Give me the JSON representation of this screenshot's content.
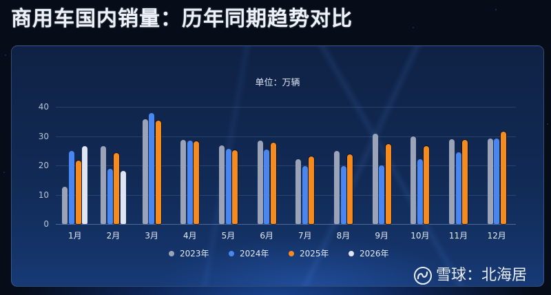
{
  "title": "商用车国内销量：历年同期趋势对比",
  "panel": {
    "unit_label": "单位：万辆"
  },
  "watermark": {
    "logo": "snowball-logo-icon",
    "text": "雪球：北海居"
  },
  "colors": {
    "2023年": "#9aa3b8",
    "2024年": "#4a86f0",
    "2025年": "#f58a1f",
    "2026年": "#dfe5f2",
    "background": "#060b14",
    "panel": "#112a55"
  },
  "chart_data": {
    "type": "bar",
    "title": "商用车国内销量：历年同期趋势对比",
    "subtitle": "单位：万辆",
    "xlabel": "",
    "ylabel": "万辆",
    "ylim": [
      0,
      40
    ],
    "yticks": [
      0,
      10,
      20,
      30,
      40
    ],
    "grid": true,
    "legend_position": "bottom",
    "categories": [
      "1月",
      "2月",
      "3月",
      "4月",
      "5月",
      "6月",
      "7月",
      "8月",
      "9月",
      "10月",
      "11月",
      "12月"
    ],
    "series": [
      {
        "name": "2023年",
        "color": "#9aa3b8",
        "values": [
          12.8,
          26.6,
          35.8,
          28.8,
          26.8,
          28.4,
          22.1,
          24.9,
          30.8,
          29.8,
          28.9,
          29.1
        ]
      },
      {
        "name": "2024年",
        "color": "#4a86f0",
        "values": [
          25.0,
          18.8,
          38.0,
          28.4,
          25.7,
          25.4,
          19.8,
          19.8,
          20.1,
          22.1,
          24.4,
          29.1
        ]
      },
      {
        "name": "2025年",
        "color": "#f58a1f",
        "values": [
          21.6,
          24.3,
          35.2,
          28.2,
          25.2,
          27.8,
          23.0,
          23.8,
          27.4,
          26.7,
          28.8,
          31.5
        ]
      },
      {
        "name": "2026年",
        "color": "#dfe5f2",
        "values": [
          26.6,
          18.2,
          null,
          null,
          null,
          null,
          null,
          null,
          null,
          null,
          null,
          null
        ]
      }
    ]
  }
}
